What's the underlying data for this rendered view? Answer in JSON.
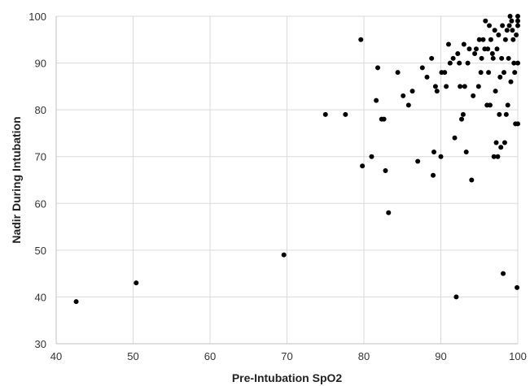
{
  "chart_data": {
    "type": "scatter",
    "title": "",
    "xlabel": "Pre-Intubation SpO2",
    "ylabel": "Nadir During Intubation",
    "xlim": [
      40,
      100
    ],
    "ylim": [
      30,
      100
    ],
    "x_ticks": [
      "40",
      "50",
      "60",
      "70",
      "80",
      "90",
      "100"
    ],
    "y_ticks": [
      "30",
      "40",
      "50",
      "60",
      "70",
      "80",
      "90",
      "100"
    ],
    "grid": true,
    "color": "#000000",
    "points": [
      [
        42.6,
        39
      ],
      [
        50.4,
        43
      ],
      [
        69.6,
        49
      ],
      [
        83.2,
        58
      ],
      [
        75.0,
        79
      ],
      [
        77.6,
        79
      ],
      [
        79.6,
        95
      ],
      [
        79.8,
        68
      ],
      [
        81.0,
        70
      ],
      [
        81.6,
        82
      ],
      [
        81.8,
        89
      ],
      [
        82.3,
        78
      ],
      [
        82.6,
        78
      ],
      [
        82.8,
        67
      ],
      [
        84.4,
        88
      ],
      [
        85.1,
        83
      ],
      [
        85.8,
        81
      ],
      [
        86.3,
        84
      ],
      [
        87.0,
        69
      ],
      [
        87.6,
        89
      ],
      [
        88.2,
        87
      ],
      [
        88.8,
        91
      ],
      [
        89.0,
        66
      ],
      [
        89.1,
        71
      ],
      [
        89.3,
        85
      ],
      [
        89.5,
        84
      ],
      [
        90.0,
        70
      ],
      [
        90.1,
        88
      ],
      [
        90.5,
        88
      ],
      [
        90.7,
        85
      ],
      [
        91.0,
        94
      ],
      [
        91.2,
        90
      ],
      [
        91.6,
        91
      ],
      [
        91.8,
        74
      ],
      [
        92.0,
        40
      ],
      [
        92.2,
        92
      ],
      [
        92.4,
        90
      ],
      [
        92.5,
        85
      ],
      [
        92.7,
        78
      ],
      [
        92.9,
        79
      ],
      [
        93.0,
        94
      ],
      [
        93.1,
        85
      ],
      [
        93.3,
        71
      ],
      [
        93.5,
        90
      ],
      [
        93.7,
        93
      ],
      [
        94.0,
        65
      ],
      [
        94.2,
        83
      ],
      [
        94.4,
        92
      ],
      [
        94.6,
        93
      ],
      [
        94.9,
        85
      ],
      [
        95.0,
        95
      ],
      [
        95.2,
        88
      ],
      [
        95.3,
        91
      ],
      [
        95.5,
        95
      ],
      [
        95.7,
        93
      ],
      [
        95.8,
        99
      ],
      [
        96.0,
        81
      ],
      [
        96.1,
        93
      ],
      [
        96.2,
        88
      ],
      [
        96.3,
        98
      ],
      [
        96.4,
        81
      ],
      [
        96.5,
        95
      ],
      [
        96.7,
        92
      ],
      [
        96.8,
        91
      ],
      [
        96.9,
        70
      ],
      [
        97.0,
        97
      ],
      [
        97.1,
        84
      ],
      [
        97.2,
        73
      ],
      [
        97.3,
        93
      ],
      [
        97.4,
        70
      ],
      [
        97.5,
        96
      ],
      [
        97.6,
        79
      ],
      [
        97.7,
        87
      ],
      [
        97.8,
        72
      ],
      [
        97.9,
        91
      ],
      [
        98.0,
        98
      ],
      [
        98.1,
        45
      ],
      [
        98.2,
        88
      ],
      [
        98.3,
        73
      ],
      [
        98.4,
        95
      ],
      [
        98.5,
        79
      ],
      [
        98.6,
        97
      ],
      [
        98.7,
        81
      ],
      [
        98.8,
        91
      ],
      [
        98.9,
        98
      ],
      [
        99.0,
        100
      ],
      [
        99.1,
        86
      ],
      [
        99.2,
        99
      ],
      [
        99.3,
        97
      ],
      [
        99.4,
        95
      ],
      [
        99.5,
        90
      ],
      [
        99.6,
        88
      ],
      [
        99.7,
        77
      ],
      [
        99.8,
        96
      ],
      [
        99.9,
        42
      ],
      [
        100.0,
        77
      ],
      [
        100.0,
        90
      ],
      [
        100.0,
        100
      ],
      [
        100.0,
        99
      ],
      [
        100.0,
        98
      ]
    ]
  }
}
